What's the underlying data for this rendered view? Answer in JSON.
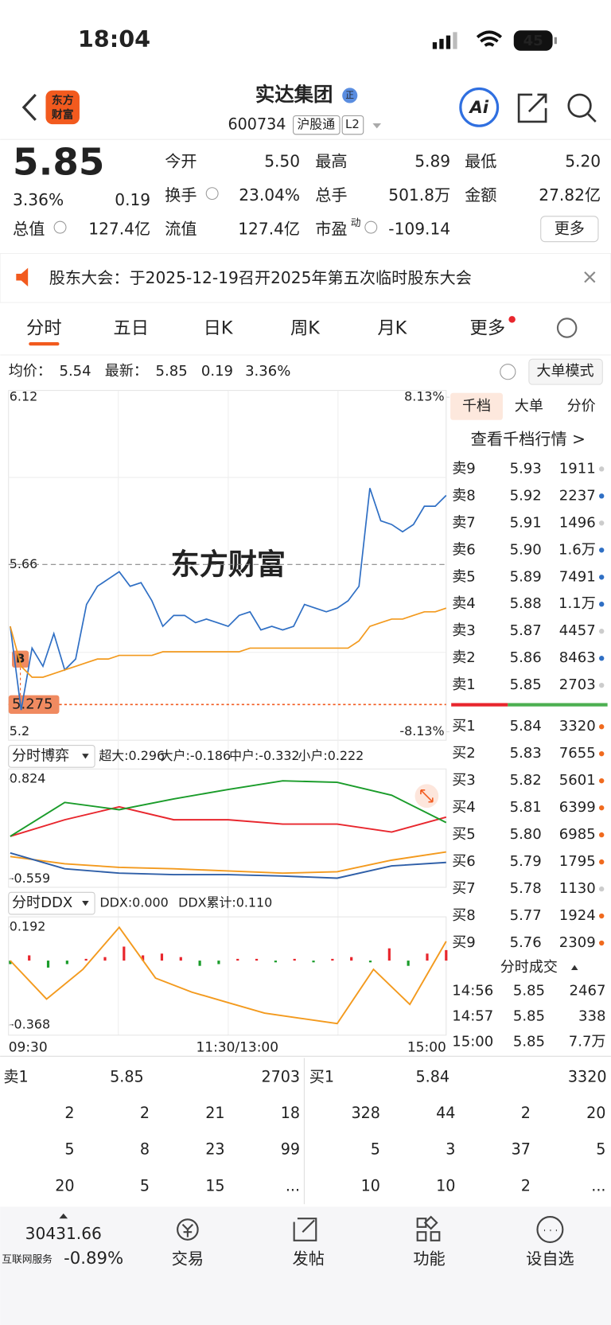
{
  "status": {
    "time": "18:04",
    "battery": "45"
  },
  "header": {
    "logo_lines": [
      "东方",
      "财富"
    ],
    "title": "实达集团",
    "badge": "正",
    "code": "600734",
    "tags": [
      "沪股通",
      "L2"
    ],
    "ai": "Ai"
  },
  "quote": {
    "price": "5.85",
    "pct": "3.36%",
    "change": "0.19",
    "fields": [
      {
        "label": "今开",
        "value": "5.50",
        "color": "#1a9c2a"
      },
      {
        "label": "最高",
        "value": "5.89",
        "color": "#e8262d"
      },
      {
        "label": "最低",
        "value": "5.20",
        "color": "#1a9c2a"
      },
      {
        "label": "换手",
        "value": "23.04%",
        "color": "#222222"
      },
      {
        "label": "总手",
        "value": "501.8万",
        "color": "#222222"
      },
      {
        "label": "金额",
        "value": "27.82亿",
        "color": "#222222"
      },
      {
        "label": "总值",
        "value": "127.4亿",
        "color": "#222222"
      },
      {
        "label": "流值",
        "value": "127.4亿",
        "color": "#222222"
      },
      {
        "label": "市盈",
        "sup": "动",
        "value": "-109.14",
        "color": "#222222"
      }
    ],
    "more": "更多"
  },
  "notice": "股东大会：于2025-12-19召开2025年第五次临时股东大会",
  "tabs": {
    "items": [
      "分时",
      "五日",
      "日K",
      "周K",
      "月K",
      "更多"
    ],
    "active": 0
  },
  "info": {
    "avg_label": "均价：",
    "avg": "5.54",
    "latest_label": "最新：",
    "latest": "5.85",
    "change": "0.19",
    "pct": "3.36%",
    "mode": "大单模式"
  },
  "price_chart": {
    "type": "line",
    "ylim": [
      5.2,
      6.12
    ],
    "yticks": [
      6.12,
      5.66,
      5.2
    ],
    "pct_labels": [
      "8.13%",
      "-8.13%"
    ],
    "reference": {
      "value": 5.275,
      "label": "5.275"
    },
    "marker": "B",
    "watermark": "东方财富",
    "xticks": [
      "09:30",
      "11:30/13:00",
      "15:00"
    ],
    "series": [
      {
        "color": "#2f6fc4",
        "values": [
          5.49,
          5.26,
          5.43,
          5.38,
          5.47,
          5.37,
          5.4,
          5.55,
          5.6,
          5.62,
          5.64,
          5.6,
          5.61,
          5.56,
          5.49,
          5.52,
          5.52,
          5.5,
          5.51,
          5.5,
          5.49,
          5.52,
          5.53,
          5.48,
          5.49,
          5.48,
          5.49,
          5.55,
          5.54,
          5.53,
          5.54,
          5.56,
          5.6,
          5.87,
          5.78,
          5.77,
          5.75,
          5.77,
          5.82,
          5.82,
          5.85
        ]
      },
      {
        "color": "#f39a1e",
        "values": [
          5.49,
          5.38,
          5.35,
          5.35,
          5.36,
          5.37,
          5.38,
          5.39,
          5.4,
          5.4,
          5.41,
          5.41,
          5.41,
          5.41,
          5.42,
          5.42,
          5.42,
          5.42,
          5.42,
          5.42,
          5.42,
          5.42,
          5.43,
          5.43,
          5.43,
          5.43,
          5.43,
          5.43,
          5.43,
          5.43,
          5.43,
          5.43,
          5.45,
          5.49,
          5.5,
          5.51,
          5.51,
          5.52,
          5.53,
          5.53,
          5.54
        ]
      }
    ]
  },
  "orderbook": {
    "tabs": [
      "千档",
      "大单",
      "分价"
    ],
    "link": "查看千档行情 >",
    "asks": [
      {
        "label": "卖9",
        "price": "5.93",
        "volume": "1911",
        "dot": "#cccccc"
      },
      {
        "label": "卖8",
        "price": "5.92",
        "volume": "2237",
        "dot": "#2f6fc4"
      },
      {
        "label": "卖7",
        "price": "5.91",
        "volume": "1496",
        "dot": "#cccccc"
      },
      {
        "label": "卖6",
        "price": "5.90",
        "volume": "1.6万",
        "dot": "#2f6fc4"
      },
      {
        "label": "卖5",
        "price": "5.89",
        "volume": "7491",
        "dot": "#2f6fc4"
      },
      {
        "label": "卖4",
        "price": "5.88",
        "volume": "1.1万",
        "dot": "#2f6fc4"
      },
      {
        "label": "卖3",
        "price": "5.87",
        "volume": "4457",
        "dot": "#cccccc"
      },
      {
        "label": "卖2",
        "price": "5.86",
        "volume": "8463",
        "dot": "#2f6fc4"
      },
      {
        "label": "卖1",
        "price": "5.85",
        "volume": "2703",
        "dot": "#cccccc"
      }
    ],
    "bids": [
      {
        "label": "买1",
        "price": "5.84",
        "volume": "3320",
        "dot": "#f06a1e"
      },
      {
        "label": "买2",
        "price": "5.83",
        "volume": "7655",
        "dot": "#f06a1e"
      },
      {
        "label": "买3",
        "price": "5.82",
        "volume": "5601",
        "dot": "#f06a1e"
      },
      {
        "label": "买4",
        "price": "5.81",
        "volume": "6399",
        "dot": "#f06a1e"
      },
      {
        "label": "买5",
        "price": "5.80",
        "volume": "6985",
        "dot": "#f06a1e"
      },
      {
        "label": "买6",
        "price": "5.79",
        "volume": "1795",
        "dot": "#f06a1e"
      },
      {
        "label": "买7",
        "price": "5.78",
        "volume": "1130",
        "dot": "#cccccc"
      },
      {
        "label": "买8",
        "price": "5.77",
        "volume": "1924",
        "dot": "#f06a1e"
      },
      {
        "label": "买9",
        "price": "5.76",
        "volume": "2309",
        "dot": "#f06a1e"
      }
    ]
  },
  "trades": {
    "title": "分时成交",
    "rows": [
      [
        "14:56",
        "5.85",
        "2467"
      ],
      [
        "14:57",
        "5.85",
        "338"
      ],
      [
        "15:00",
        "5.85",
        "7.7万"
      ]
    ]
  },
  "game_panel": {
    "type": "line",
    "title": "分时博弈",
    "ylim": [
      -0.559,
      0.824
    ],
    "yticks": [
      0.824,
      -0.559
    ],
    "series": [
      {
        "legend": "超大:0.296",
        "color": "#e8262d",
        "values": [
          0.03,
          0.26,
          0.44,
          0.26,
          0.26,
          0.2,
          0.2,
          0.09,
          0.296
        ]
      },
      {
        "legend": "大户:-0.186",
        "color": "#f39a1e",
        "values": [
          -0.25,
          -0.35,
          -0.4,
          -0.42,
          -0.45,
          -0.48,
          -0.46,
          -0.3,
          -0.186
        ]
      },
      {
        "legend": "中户:-0.332",
        "color": "#2f5fa8",
        "values": [
          -0.2,
          -0.42,
          -0.48,
          -0.5,
          -0.5,
          -0.52,
          -0.55,
          -0.38,
          -0.332
        ]
      },
      {
        "legend": "小户:0.222",
        "color": "#1a9c2a",
        "values": [
          0.03,
          0.5,
          0.4,
          0.55,
          0.68,
          0.8,
          0.78,
          0.6,
          0.222
        ]
      }
    ]
  },
  "ddx_panel": {
    "type": "bar",
    "title": "分时DDX",
    "ylim": [
      -0.368,
      0.192
    ],
    "yticks": [
      0.192,
      -0.368
    ],
    "legend": [
      {
        "text": "DDX:0.000",
        "color": "#222222"
      },
      {
        "text": "DDX累计:0.110",
        "color": "#f39a1e"
      }
    ],
    "up_color": "#e8262d",
    "down_color": "#1a9c2a",
    "bars": [
      -0.02,
      0.03,
      -0.04,
      -0.02,
      0.01,
      0.02,
      0.08,
      0.03,
      0.04,
      0.02,
      -0.03,
      -0.02,
      0.01,
      0.01,
      -0.01,
      0.01,
      -0.01,
      0.01,
      0.02,
      -0.01,
      0.07,
      -0.03,
      0.04,
      0.06
    ],
    "line": {
      "color": "#f39a1e",
      "values": [
        0.0,
        -0.22,
        -0.05,
        0.19,
        -0.1,
        -0.18,
        -0.24,
        -0.3,
        -0.33,
        -0.36,
        -0.05,
        -0.25,
        0.11
      ]
    }
  },
  "level1": {
    "ask": {
      "label": "卖1",
      "price": "5.85",
      "volume": "2703",
      "queue": [
        [
          "2",
          "2",
          "21",
          "18"
        ],
        [
          "5",
          "8",
          "23",
          "99"
        ],
        [
          "20",
          "5",
          "15",
          "..."
        ]
      ]
    },
    "bid": {
      "label": "买1",
      "price": "5.84",
      "volume": "3320",
      "queue": [
        [
          "328",
          "44",
          "2",
          "20"
        ],
        [
          "5",
          "3",
          "37",
          "5"
        ],
        [
          "10",
          "10",
          "2",
          "..."
        ]
      ]
    }
  },
  "nav": {
    "index": "30431.66",
    "index_name": "互联网服务",
    "index_pct": "-0.89%",
    "items": [
      "交易",
      "发帖",
      "功能",
      "设自选"
    ]
  }
}
